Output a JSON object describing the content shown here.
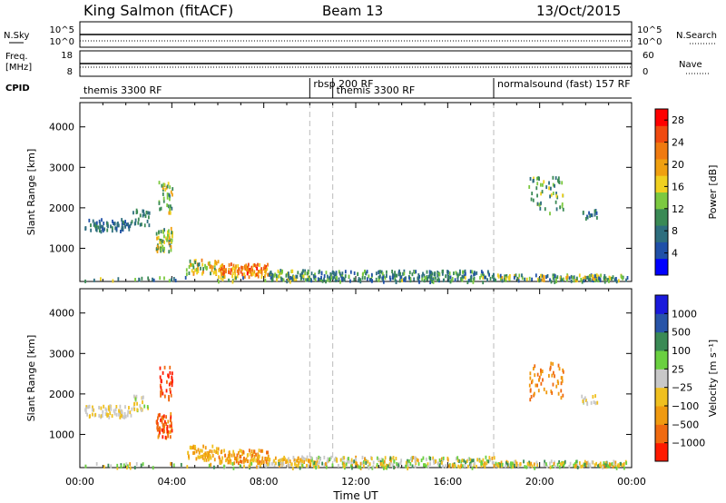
{
  "header": {
    "station": "King Salmon (fitACF)",
    "beam": "Beam 13",
    "date": "13/Oct/2015"
  },
  "summary_panels": {
    "nsky_label": "N.Sky",
    "nsky_ticks": [
      "10^5",
      "10^0"
    ],
    "nsearch_label": "N.Search",
    "freq_label_1": "Freq.",
    "freq_label_2": "[MHz]",
    "freq_ticks": [
      "18",
      "8"
    ],
    "nave_label": "Nave",
    "nave_ticks": [
      "60",
      "0"
    ],
    "cpid_label": "CPID",
    "programs": [
      {
        "label": "themis 3300 RF",
        "start_hour": 0
      },
      {
        "label": "rbsp 200 RF",
        "start_hour": 10
      },
      {
        "label": "themis 3300 RF",
        "start_hour": 11
      },
      {
        "label": "normalsound (fast) 157 RF",
        "start_hour": 18
      }
    ]
  },
  "colors": {
    "power_scale": [
      "#0000ff",
      "#2050a8",
      "#2e6e7e",
      "#3a8a55",
      "#7cc940",
      "#f0d020",
      "#f0a010",
      "#f07a10",
      "#f04a10",
      "#ff0000"
    ],
    "velocity_scale": [
      "#1a1adc",
      "#2854a8",
      "#3a8a55",
      "#6ad040",
      "#c8c8c8",
      "#f0c020",
      "#f09a10",
      "#f06a10",
      "#ff1a00"
    ]
  },
  "chart_data": [
    {
      "type": "heatmap",
      "name": "power",
      "xlabel": "Time UT",
      "ylabel": "Slant Range [km]",
      "x_ticks": [
        "00:00",
        "04:00",
        "08:00",
        "12:00",
        "16:00",
        "20:00",
        "00:00"
      ],
      "xlim_hours": [
        0,
        24
      ],
      "y_ticks": [
        1000,
        2000,
        3000,
        4000
      ],
      "ylim": [
        180,
        4600
      ],
      "colorbar_label": "Power [dB]",
      "colorbar_ticks": [
        4,
        8,
        12,
        16,
        20,
        24,
        28
      ],
      "colorbar_range": [
        0,
        30
      ],
      "boundary_hours": [
        10,
        11,
        18
      ],
      "scatter_regions": [
        {
          "t": [
            0.2,
            2.2
          ],
          "r": [
            1450,
            1750
          ],
          "v": [
            4,
            10
          ],
          "n": 70
        },
        {
          "t": [
            2.2,
            3.0
          ],
          "r": [
            1600,
            2000
          ],
          "v": [
            6,
            12
          ],
          "n": 25
        },
        {
          "t": [
            3.3,
            4.0
          ],
          "r": [
            950,
            1550
          ],
          "v": [
            8,
            20
          ],
          "n": 60
        },
        {
          "t": [
            3.4,
            4.0
          ],
          "r": [
            1900,
            2700
          ],
          "v": [
            8,
            20
          ],
          "n": 35
        },
        {
          "t": [
            4.6,
            6.0
          ],
          "r": [
            400,
            750
          ],
          "v": [
            8,
            22
          ],
          "n": 55
        },
        {
          "t": [
            6.0,
            8.2
          ],
          "r": [
            330,
            650
          ],
          "v": [
            16,
            28
          ],
          "n": 110
        },
        {
          "t": [
            8.2,
            10.0
          ],
          "r": [
            260,
            500
          ],
          "v": [
            6,
            18
          ],
          "n": 70
        },
        {
          "t": [
            10.0,
            18.0
          ],
          "r": [
            240,
            480
          ],
          "v": [
            4,
            14
          ],
          "n": 230
        },
        {
          "t": [
            18.0,
            23.8
          ],
          "r": [
            240,
            380
          ],
          "v": [
            4,
            20
          ],
          "n": 120
        },
        {
          "t": [
            19.5,
            21.0
          ],
          "r": [
            1900,
            2800
          ],
          "v": [
            6,
            16
          ],
          "n": 55
        },
        {
          "t": [
            21.8,
            22.5
          ],
          "r": [
            1750,
            2000
          ],
          "v": [
            4,
            12
          ],
          "n": 15
        },
        {
          "t": [
            0.1,
            23.8
          ],
          "r": [
            200,
            320
          ],
          "v": [
            4,
            16
          ],
          "n": 120
        }
      ]
    },
    {
      "type": "heatmap",
      "name": "velocity",
      "xlabel": "Time UT",
      "ylabel": "Slant Range [km]",
      "x_ticks": [
        "00:00",
        "04:00",
        "08:00",
        "12:00",
        "16:00",
        "20:00",
        "00:00"
      ],
      "xlim_hours": [
        0,
        24
      ],
      "y_ticks": [
        1000,
        2000,
        3000,
        4000
      ],
      "ylim": [
        180,
        4600
      ],
      "colorbar_label": "Velocity [m s⁻¹]",
      "colorbar_ticks": [
        "1000",
        "500",
        "100",
        "25",
        "−25",
        "−100",
        "−500",
        "−1000"
      ],
      "scatter_regions": [
        {
          "t": [
            0.2,
            2.2
          ],
          "r": [
            1450,
            1750
          ],
          "v": [
            4,
            5
          ],
          "n": 70
        },
        {
          "t": [
            2.2,
            3.0
          ],
          "r": [
            1600,
            2000
          ],
          "v": [
            3,
            5
          ],
          "n": 25
        },
        {
          "t": [
            3.3,
            4.0
          ],
          "r": [
            950,
            1550
          ],
          "v": [
            6,
            8
          ],
          "n": 60
        },
        {
          "t": [
            3.4,
            4.0
          ],
          "r": [
            1900,
            2700
          ],
          "v": [
            7,
            8
          ],
          "n": 35
        },
        {
          "t": [
            4.6,
            6.0
          ],
          "r": [
            400,
            750
          ],
          "v": [
            5,
            6
          ],
          "n": 55
        },
        {
          "t": [
            6.0,
            8.2
          ],
          "r": [
            330,
            650
          ],
          "v": [
            5,
            7
          ],
          "n": 110
        },
        {
          "t": [
            8.2,
            10.0
          ],
          "r": [
            260,
            500
          ],
          "v": [
            4,
            6
          ],
          "n": 70
        },
        {
          "t": [
            10.0,
            18.0
          ],
          "r": [
            240,
            480
          ],
          "v": [
            2,
            6
          ],
          "n": 230
        },
        {
          "t": [
            18.0,
            23.8
          ],
          "r": [
            240,
            380
          ],
          "v": [
            2,
            6
          ],
          "n": 120
        },
        {
          "t": [
            19.5,
            21.0
          ],
          "r": [
            1900,
            2800
          ],
          "v": [
            6,
            7
          ],
          "n": 55
        },
        {
          "t": [
            21.8,
            22.5
          ],
          "r": [
            1750,
            2000
          ],
          "v": [
            3,
            5
          ],
          "n": 15
        },
        {
          "t": [
            0.1,
            23.8
          ],
          "r": [
            200,
            320
          ],
          "v": [
            2,
            6
          ],
          "n": 120
        }
      ]
    }
  ]
}
